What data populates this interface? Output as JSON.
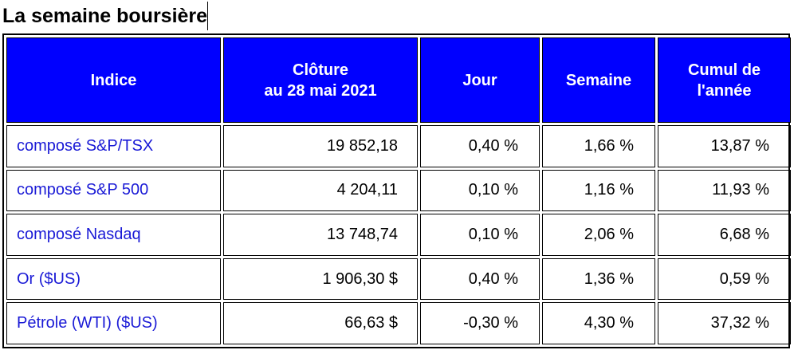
{
  "title": "La semaine boursière",
  "table": {
    "headers": {
      "indice": "Indice",
      "cloture_line1": "Clôture",
      "cloture_line2": "au 28 mai 2021",
      "jour": "Jour",
      "semaine": "Semaine",
      "cumul_line1": "Cumul de",
      "cumul_line2": "l'année"
    },
    "rows": [
      {
        "indice": "composé S&P/TSX",
        "cloture": "19 852,18",
        "jour": "0,40 %",
        "semaine": "1,66 %",
        "cumul": "13,87 %"
      },
      {
        "indice": "composé S&P 500",
        "cloture": "4 204,11",
        "jour": "0,10 %",
        "semaine": "1,16 %",
        "cumul": "11,93 %"
      },
      {
        "indice": "composé Nasdaq",
        "cloture": "13 748,74",
        "jour": "0,10 %",
        "semaine": "2,06 %",
        "cumul": "6,68 %"
      },
      {
        "indice": "Or ($US)",
        "cloture": "1 906,30 $",
        "jour": "0,40 %",
        "semaine": "1,36 %",
        "cumul": "0,59 %"
      },
      {
        "indice": "Pétrole (WTI) ($US)",
        "cloture": "66,63 $",
        "jour": "-0,30 %",
        "semaine": "4,30 %",
        "cumul": "37,32 %"
      }
    ]
  },
  "colors": {
    "header_bg": "#0000ff",
    "header_text": "#ffffff",
    "name_text": "#1a1ad6"
  }
}
